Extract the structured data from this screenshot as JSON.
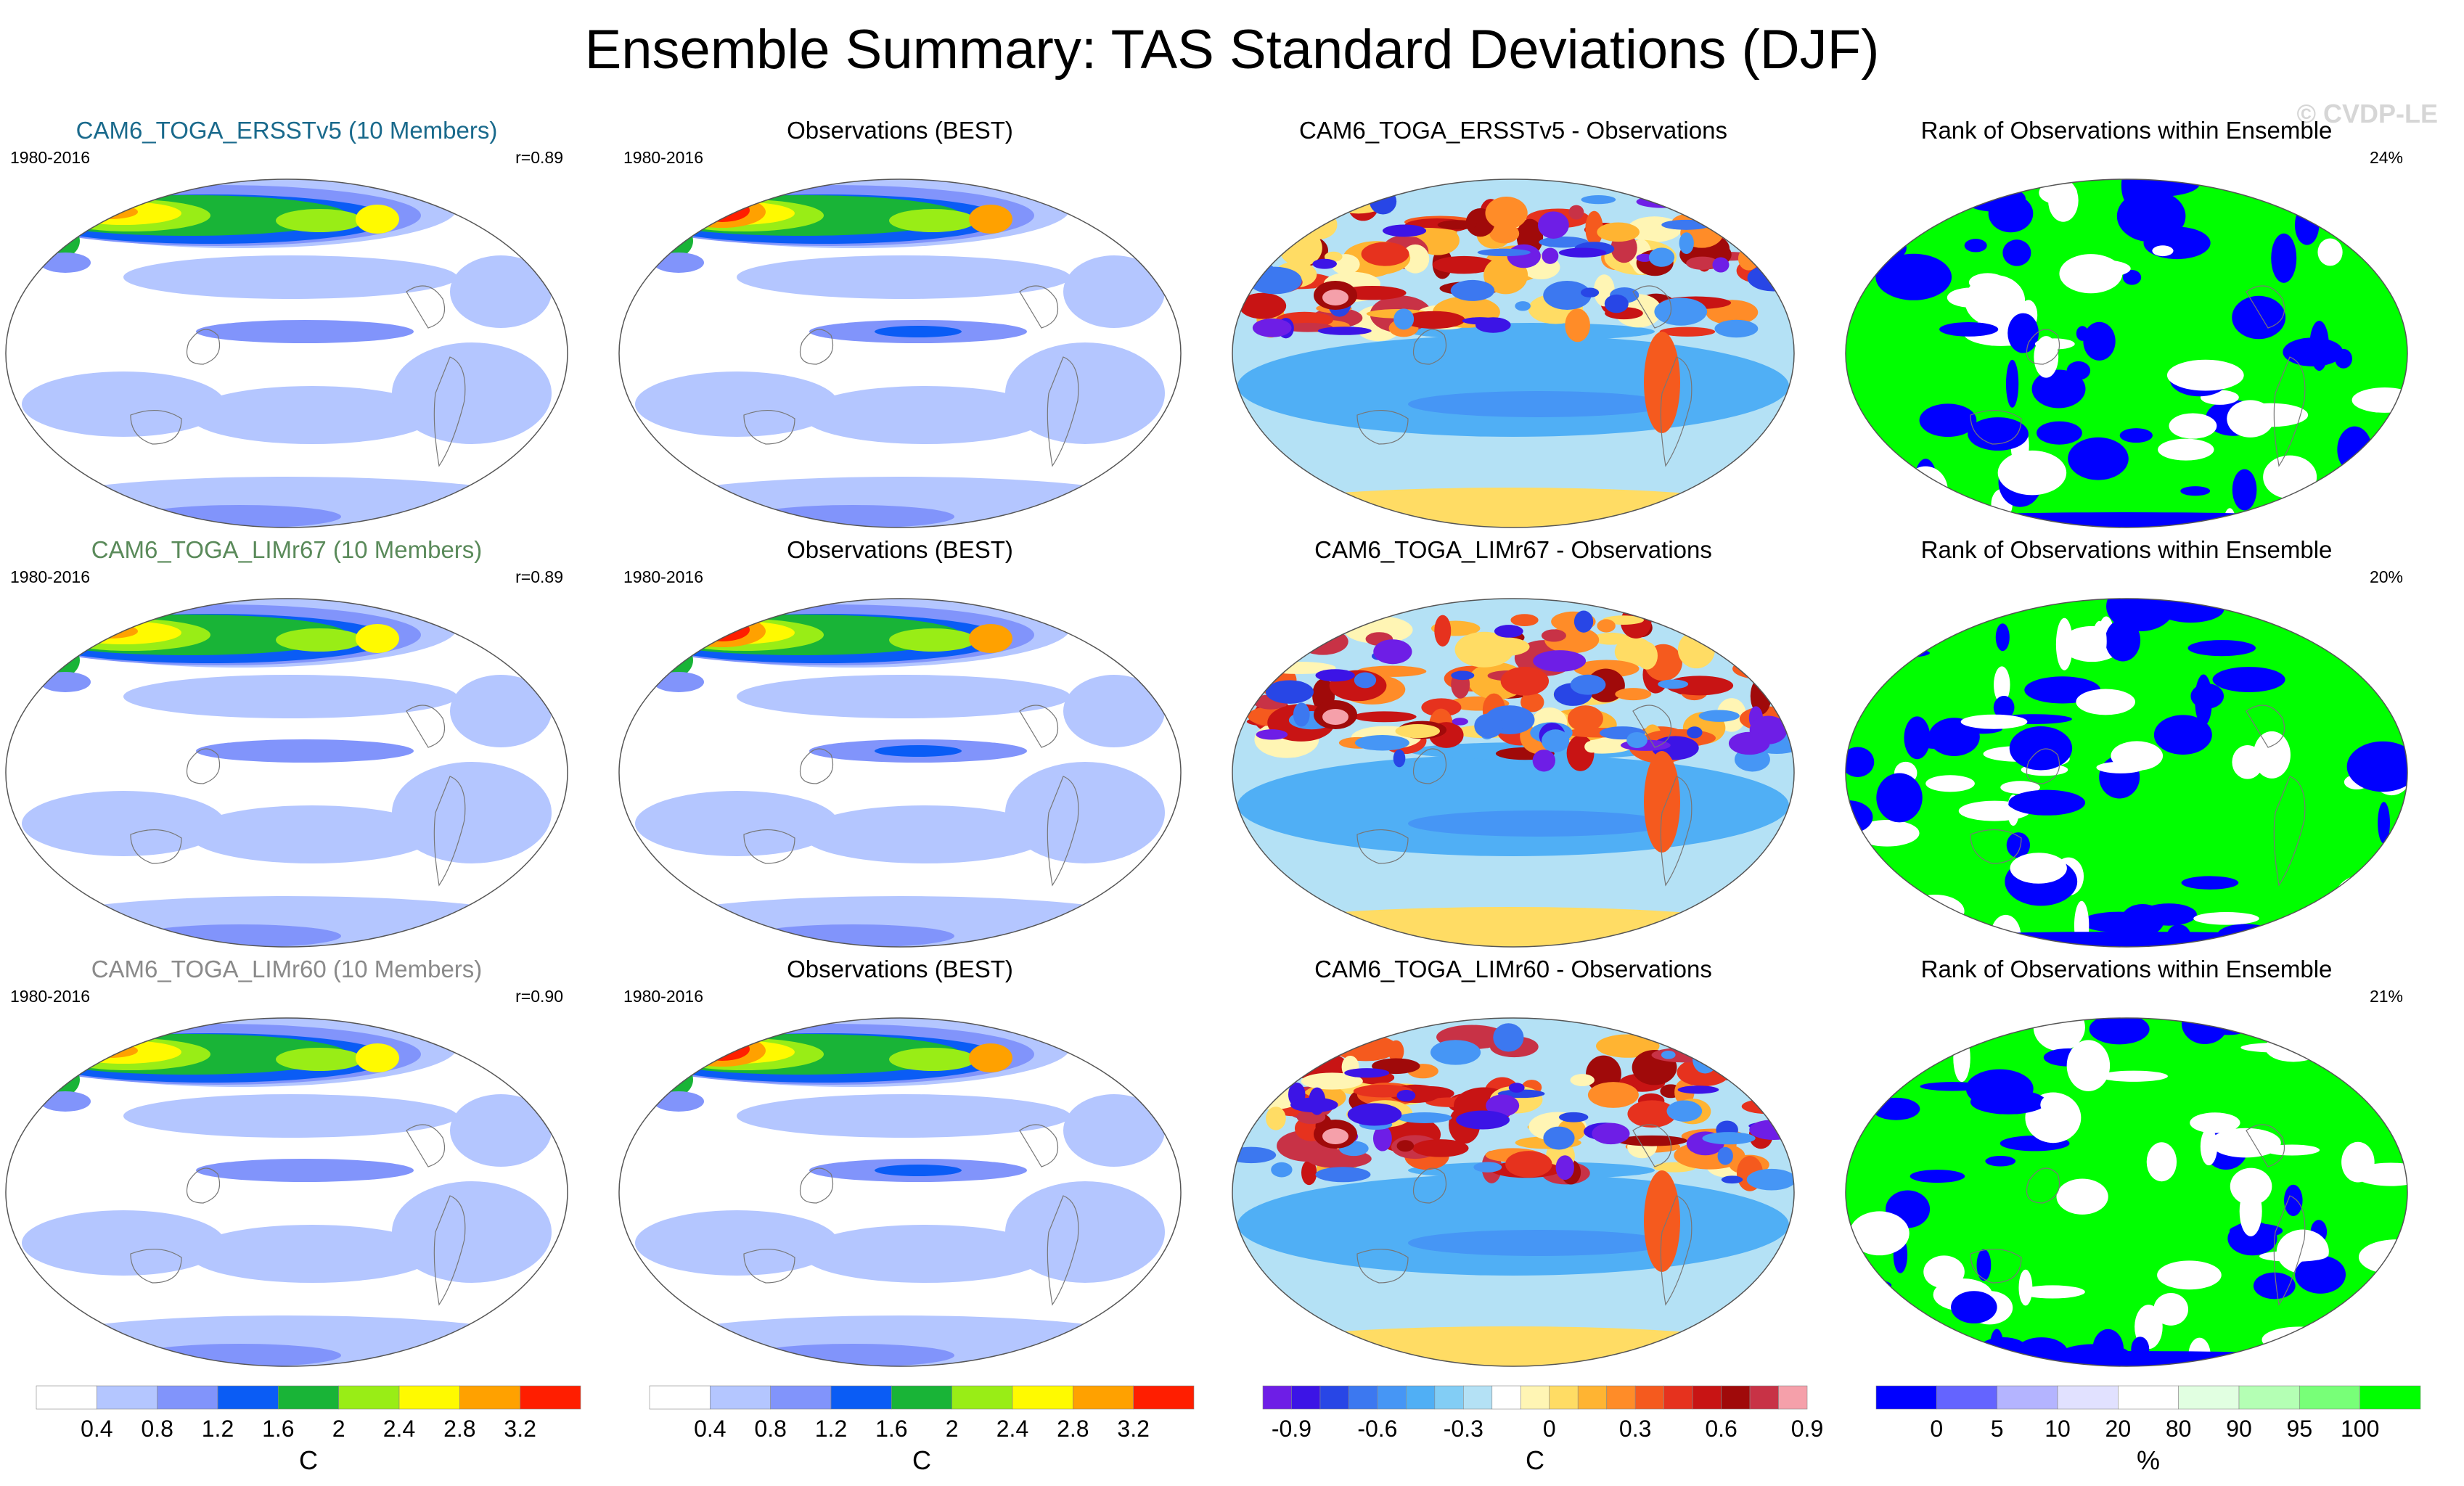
{
  "figure": {
    "title": "Ensemble Summary: TAS Standard Deviations (DJF)",
    "watermark": "© CVDP-LE"
  },
  "colors": {
    "sd_scale": [
      "#ffffff",
      "#b4c6ff",
      "#8194fb",
      "#0a5cf5",
      "#19b437",
      "#99ed16",
      "#fffa00",
      "#ffa100",
      "#ff1e00"
    ],
    "diff_scale": [
      "#6e1ee6",
      "#3c14e6",
      "#2846e6",
      "#3c78f0",
      "#4696f5",
      "#50aff5",
      "#82cdf5",
      "#b4e1f5",
      "#ffffff",
      "#fff5b4",
      "#ffdc64",
      "#ffb432",
      "#ff8c28",
      "#f55a1e",
      "#e6321e",
      "#c81414",
      "#a00a0a",
      "#c83246",
      "#f5a0aa"
    ],
    "rank_scale": [
      "#0000ff",
      "#6464ff",
      "#b4b4ff",
      "#e1e1ff",
      "#ffffff",
      "#e1ffe1",
      "#b4ffb4",
      "#78ff78",
      "#00ff00"
    ]
  },
  "rows": [
    {
      "model": {
        "title": "CAM6_TOGA_ERSSTv5 (10 Members)",
        "title_color": "#1a6a8c",
        "period": "1980-2016",
        "stat": "r=0.89"
      },
      "obs": {
        "title": "Observations (BEST)",
        "period": "1980-2016"
      },
      "diff": {
        "title": "CAM6_TOGA_ERSSTv5 - Observations"
      },
      "rank": {
        "title": "Rank of Observations within Ensemble",
        "stat": "24%"
      }
    },
    {
      "model": {
        "title": "CAM6_TOGA_LIMr67 (10 Members)",
        "title_color": "#5a8a5a",
        "period": "1980-2016",
        "stat": "r=0.89"
      },
      "obs": {
        "title": "Observations (BEST)",
        "period": "1980-2016"
      },
      "diff": {
        "title": "CAM6_TOGA_LIMr67 - Observations"
      },
      "rank": {
        "title": "Rank of Observations within Ensemble",
        "stat": "20%"
      }
    },
    {
      "model": {
        "title": "CAM6_TOGA_LIMr60 (10 Members)",
        "title_color": "#8a8a8a",
        "period": "1980-2016",
        "stat": "r=0.90"
      },
      "obs": {
        "title": "Observations (BEST)",
        "period": "1980-2016"
      },
      "diff": {
        "title": "CAM6_TOGA_LIMr60 - Observations"
      },
      "rank": {
        "title": "Rank of Observations within Ensemble",
        "stat": "21%"
      }
    }
  ],
  "colorbars": [
    {
      "unit": "C",
      "labels": [
        "0.4",
        "0.8",
        "1.2",
        "1.6",
        "2",
        "2.4",
        "2.8",
        "3.2"
      ]
    },
    {
      "unit": "C",
      "labels": [
        "0.4",
        "0.8",
        "1.2",
        "1.6",
        "2",
        "2.4",
        "2.8",
        "3.2"
      ]
    },
    {
      "unit": "C",
      "labels": [
        "-0.9",
        "-0.6",
        "-0.3",
        "0",
        "0.3",
        "0.6",
        "0.9"
      ]
    },
    {
      "unit": "%",
      "labels": [
        "0",
        "5",
        "10",
        "20",
        "80",
        "90",
        "95",
        "100"
      ]
    }
  ],
  "chart_data": [
    {
      "type": "heatmap",
      "title": "CAM6_TOGA_ERSSTv5 (10 Members)",
      "subtitle": "1980-2016",
      "annotation": "r=0.89",
      "colorbar_unit": "C",
      "levels": [
        0.4,
        0.8,
        1.2,
        1.6,
        2,
        2.4,
        2.8,
        3.2
      ]
    },
    {
      "type": "heatmap",
      "title": "Observations (BEST)",
      "subtitle": "1980-2016",
      "colorbar_unit": "C",
      "levels": [
        0.4,
        0.8,
        1.2,
        1.6,
        2,
        2.4,
        2.8,
        3.2
      ]
    },
    {
      "type": "heatmap",
      "title": "CAM6_TOGA_ERSSTv5 - Observations",
      "colorbar_unit": "C",
      "levels": [
        -0.9,
        -0.6,
        -0.3,
        0,
        0.3,
        0.6,
        0.9
      ]
    },
    {
      "type": "heatmap",
      "title": "Rank of Observations within Ensemble",
      "annotation": "24%",
      "colorbar_unit": "%",
      "levels": [
        0,
        5,
        10,
        20,
        80,
        90,
        95,
        100
      ]
    },
    {
      "type": "heatmap",
      "title": "CAM6_TOGA_LIMr67 (10 Members)",
      "subtitle": "1980-2016",
      "annotation": "r=0.89",
      "colorbar_unit": "C",
      "levels": [
        0.4,
        0.8,
        1.2,
        1.6,
        2,
        2.4,
        2.8,
        3.2
      ]
    },
    {
      "type": "heatmap",
      "title": "Observations (BEST)",
      "subtitle": "1980-2016",
      "colorbar_unit": "C",
      "levels": [
        0.4,
        0.8,
        1.2,
        1.6,
        2,
        2.4,
        2.8,
        3.2
      ]
    },
    {
      "type": "heatmap",
      "title": "CAM6_TOGA_LIMr67 - Observations",
      "colorbar_unit": "C",
      "levels": [
        -0.9,
        -0.6,
        -0.3,
        0,
        0.3,
        0.6,
        0.9
      ]
    },
    {
      "type": "heatmap",
      "title": "Rank of Observations within Ensemble",
      "annotation": "20%",
      "colorbar_unit": "%",
      "levels": [
        0,
        5,
        10,
        20,
        80,
        90,
        95,
        100
      ]
    },
    {
      "type": "heatmap",
      "title": "CAM6_TOGA_LIMr60 (10 Members)",
      "subtitle": "1980-2016",
      "annotation": "r=0.90",
      "colorbar_unit": "C",
      "levels": [
        0.4,
        0.8,
        1.2,
        1.6,
        2,
        2.4,
        2.8,
        3.2
      ]
    },
    {
      "type": "heatmap",
      "title": "Observations (BEST)",
      "subtitle": "1980-2016",
      "colorbar_unit": "C",
      "levels": [
        0.4,
        0.8,
        1.2,
        1.6,
        2,
        2.4,
        2.8,
        3.2
      ]
    },
    {
      "type": "heatmap",
      "title": "CAM6_TOGA_LIMr60 - Observations",
      "colorbar_unit": "C",
      "levels": [
        -0.9,
        -0.6,
        -0.3,
        0,
        0.3,
        0.6,
        0.9
      ]
    },
    {
      "type": "heatmap",
      "title": "Rank of Observations within Ensemble",
      "annotation": "21%",
      "colorbar_unit": "%",
      "levels": [
        0,
        5,
        10,
        20,
        80,
        90,
        95,
        100
      ]
    }
  ]
}
